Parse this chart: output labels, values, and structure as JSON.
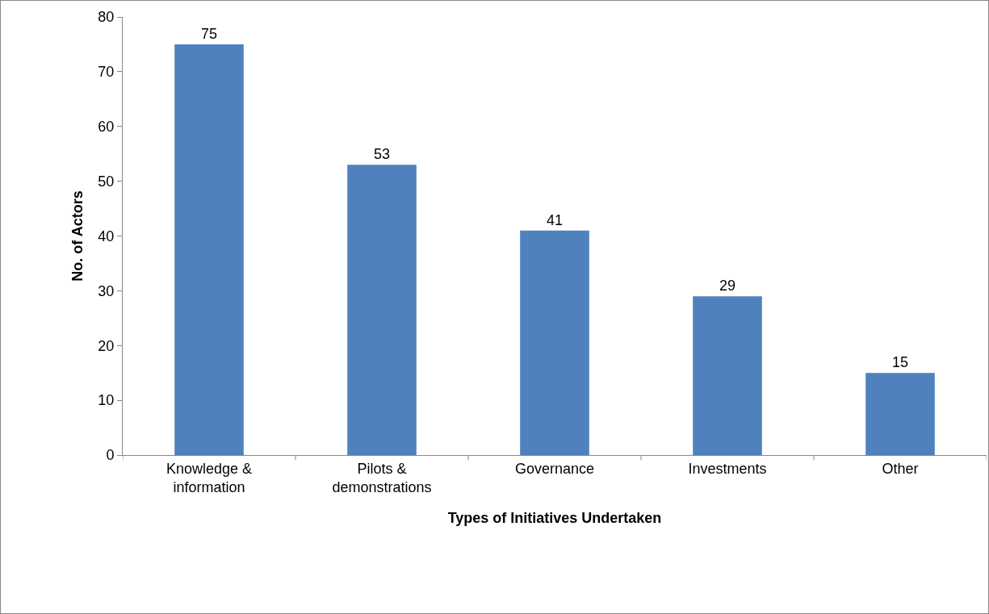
{
  "chart_data": {
    "type": "bar",
    "xlabel": "Types of Initiatives Undertaken",
    "ylabel": "No. of Actors",
    "categories": [
      "Knowledge & information",
      "Pilots & demonstrations",
      "Governance",
      "Investments",
      "Other"
    ],
    "values": [
      75,
      53,
      41,
      29,
      15
    ],
    "color": "#4f81bd",
    "data_labels": true,
    "ylim": [
      0,
      80
    ],
    "yticks": [
      0,
      10,
      20,
      30,
      40,
      50,
      60,
      70,
      80
    ],
    "grid": false,
    "legend": false
  }
}
